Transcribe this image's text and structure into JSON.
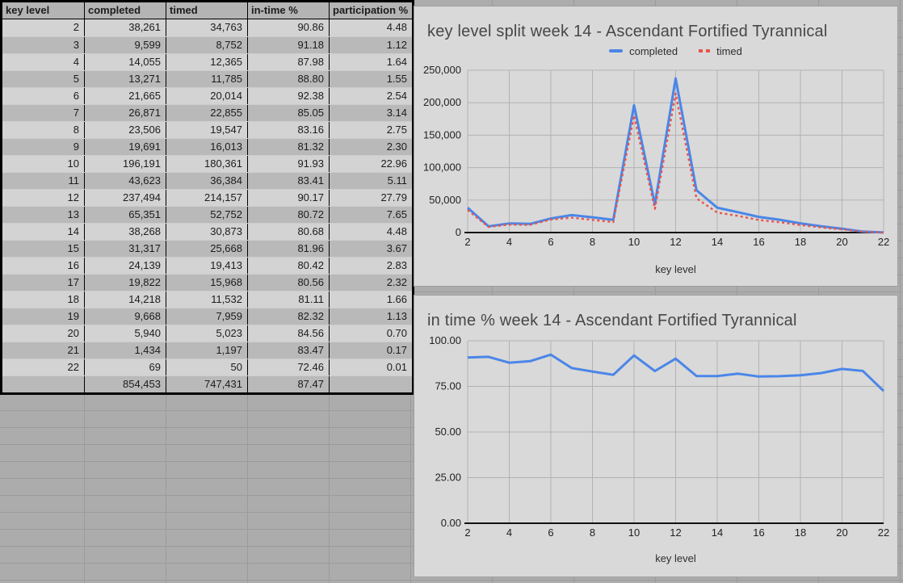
{
  "table": {
    "headers": [
      "key level",
      "completed",
      "timed",
      "in-time %",
      "participation %"
    ],
    "rows": [
      [
        "2",
        "38,261",
        "34,763",
        "90.86",
        "4.48"
      ],
      [
        "3",
        "9,599",
        "8,752",
        "91.18",
        "1.12"
      ],
      [
        "4",
        "14,055",
        "12,365",
        "87.98",
        "1.64"
      ],
      [
        "5",
        "13,271",
        "11,785",
        "88.80",
        "1.55"
      ],
      [
        "6",
        "21,665",
        "20,014",
        "92.38",
        "2.54"
      ],
      [
        "7",
        "26,871",
        "22,855",
        "85.05",
        "3.14"
      ],
      [
        "8",
        "23,506",
        "19,547",
        "83.16",
        "2.75"
      ],
      [
        "9",
        "19,691",
        "16,013",
        "81.32",
        "2.30"
      ],
      [
        "10",
        "196,191",
        "180,361",
        "91.93",
        "22.96"
      ],
      [
        "11",
        "43,623",
        "36,384",
        "83.41",
        "5.11"
      ],
      [
        "12",
        "237,494",
        "214,157",
        "90.17",
        "27.79"
      ],
      [
        "13",
        "65,351",
        "52,752",
        "80.72",
        "7.65"
      ],
      [
        "14",
        "38,268",
        "30,873",
        "80.68",
        "4.48"
      ],
      [
        "15",
        "31,317",
        "25,668",
        "81.96",
        "3.67"
      ],
      [
        "16",
        "24,139",
        "19,413",
        "80.42",
        "2.83"
      ],
      [
        "17",
        "19,822",
        "15,968",
        "80.56",
        "2.32"
      ],
      [
        "18",
        "14,218",
        "11,532",
        "81.11",
        "1.66"
      ],
      [
        "19",
        "9,668",
        "7,959",
        "82.32",
        "1.13"
      ],
      [
        "20",
        "5,940",
        "5,023",
        "84.56",
        "0.70"
      ],
      [
        "21",
        "1,434",
        "1,197",
        "83.47",
        "0.17"
      ],
      [
        "22",
        "69",
        "50",
        "72.46",
        "0.01"
      ]
    ],
    "total_row": [
      "",
      "854,453",
      "747,431",
      "87.47",
      ""
    ]
  },
  "chart_data": [
    {
      "type": "line",
      "title": "key level split week 14 - Ascendant Fortified Tyrannical",
      "xlabel": "key level",
      "x": [
        2,
        3,
        4,
        5,
        6,
        7,
        8,
        9,
        10,
        11,
        12,
        13,
        14,
        15,
        16,
        17,
        18,
        19,
        20,
        21,
        22
      ],
      "xlim": [
        2,
        22
      ],
      "xticks": [
        2,
        4,
        6,
        8,
        10,
        12,
        14,
        16,
        18,
        20,
        22
      ],
      "ylim": [
        0,
        250000
      ],
      "ytick_vals": [
        0,
        50000,
        100000,
        150000,
        200000,
        250000
      ],
      "ytick_labels": [
        "0",
        "50,000",
        "100,000",
        "150,000",
        "200,000",
        "250,000"
      ],
      "grid": true,
      "legend_position": "top",
      "series": [
        {
          "name": "completed",
          "color": "#4a86e8",
          "style": "solid",
          "values": [
            38261,
            9599,
            14055,
            13271,
            21665,
            26871,
            23506,
            19691,
            196191,
            43623,
            237494,
            65351,
            38268,
            31317,
            24139,
            19822,
            14218,
            9668,
            5940,
            1434,
            69
          ]
        },
        {
          "name": "timed",
          "color": "#e8544a",
          "style": "dotted",
          "values": [
            34763,
            8752,
            12365,
            11785,
            20014,
            22855,
            19547,
            16013,
            180361,
            36384,
            214157,
            52752,
            30873,
            25668,
            19413,
            15968,
            11532,
            7959,
            5023,
            1197,
            50
          ]
        }
      ]
    },
    {
      "type": "line",
      "title": "in time % week 14 - Ascendant Fortified Tyrannical",
      "xlabel": "key level",
      "x": [
        2,
        3,
        4,
        5,
        6,
        7,
        8,
        9,
        10,
        11,
        12,
        13,
        14,
        15,
        16,
        17,
        18,
        19,
        20,
        21,
        22
      ],
      "xlim": [
        2,
        22
      ],
      "xticks": [
        2,
        4,
        6,
        8,
        10,
        12,
        14,
        16,
        18,
        20,
        22
      ],
      "ylim": [
        0,
        100
      ],
      "ytick_vals": [
        0,
        25,
        50,
        75,
        100
      ],
      "ytick_labels": [
        "0.00",
        "25.00",
        "50.00",
        "75.00",
        "100.00"
      ],
      "grid": true,
      "legend_position": "none",
      "series": [
        {
          "name": "in-time %",
          "color": "#4a86e8",
          "style": "solid",
          "values": [
            90.86,
            91.18,
            87.98,
            88.8,
            92.38,
            85.05,
            83.16,
            81.32,
            91.93,
            83.41,
            90.17,
            80.72,
            80.68,
            81.96,
            80.42,
            80.56,
            81.11,
            82.32,
            84.56,
            83.47,
            72.46
          ]
        }
      ]
    }
  ],
  "colors": {
    "completed_line": "#4a86e8",
    "timed_line": "#e8544a",
    "panel_bg": "#d9d9d9",
    "sheet_bg": "#acacac"
  }
}
